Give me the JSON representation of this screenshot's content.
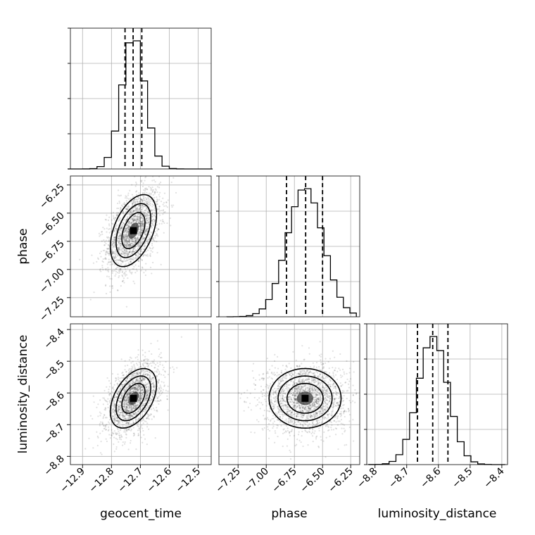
{
  "chart_data": {
    "type": "corner",
    "parameters": [
      "geocent_time",
      "phase",
      "luminosity_distance"
    ],
    "axes": {
      "geocent_time": {
        "ticks": [
          -12.9,
          -12.8,
          -12.7,
          -12.6,
          -12.5
        ],
        "tick_labels": [
          "−12.9",
          "−12.8",
          "−12.7",
          "−12.6",
          "−12.5"
        ]
      },
      "phase": {
        "ticks": [
          -7.25,
          -7.0,
          -6.75,
          -6.5,
          -6.25
        ],
        "tick_labels": [
          "−7.25",
          "−7.00",
          "−6.75",
          "−6.50",
          "−6.25"
        ]
      },
      "luminosity_distance": {
        "ticks": [
          -8.8,
          -8.7,
          -8.6,
          -8.5,
          -8.4
        ],
        "tick_labels": [
          "−8.8",
          "−8.7",
          "−8.6",
          "−8.5",
          "−8.4"
        ]
      }
    },
    "histograms": [
      {
        "parameter": "geocent_time",
        "quantiles": [
          -12.753,
          -12.725,
          -12.695
        ],
        "mean": -12.724,
        "sigma": 0.04,
        "range": [
          -12.95,
          -12.45
        ]
      },
      {
        "parameter": "phase",
        "quantiles": [
          -6.82,
          -6.65,
          -6.5
        ],
        "mean": -6.655,
        "sigma": 0.16,
        "range": [
          -7.35,
          -6.2
        ]
      },
      {
        "parameter": "luminosity_distance",
        "quantiles": [
          -8.666,
          -8.618,
          -8.57
        ],
        "mean": -8.617,
        "sigma": 0.047,
        "range": [
          -8.82,
          -8.39
        ]
      }
    ],
    "scatter_panels": [
      {
        "x": "geocent_time",
        "y": "phase",
        "correlation": 0.45
      },
      {
        "x": "geocent_time",
        "y": "luminosity_distance",
        "correlation": 0.45
      },
      {
        "x": "phase",
        "y": "luminosity_distance",
        "correlation": 0.0
      }
    ],
    "grid": true,
    "quantile_lines": "dashed"
  }
}
